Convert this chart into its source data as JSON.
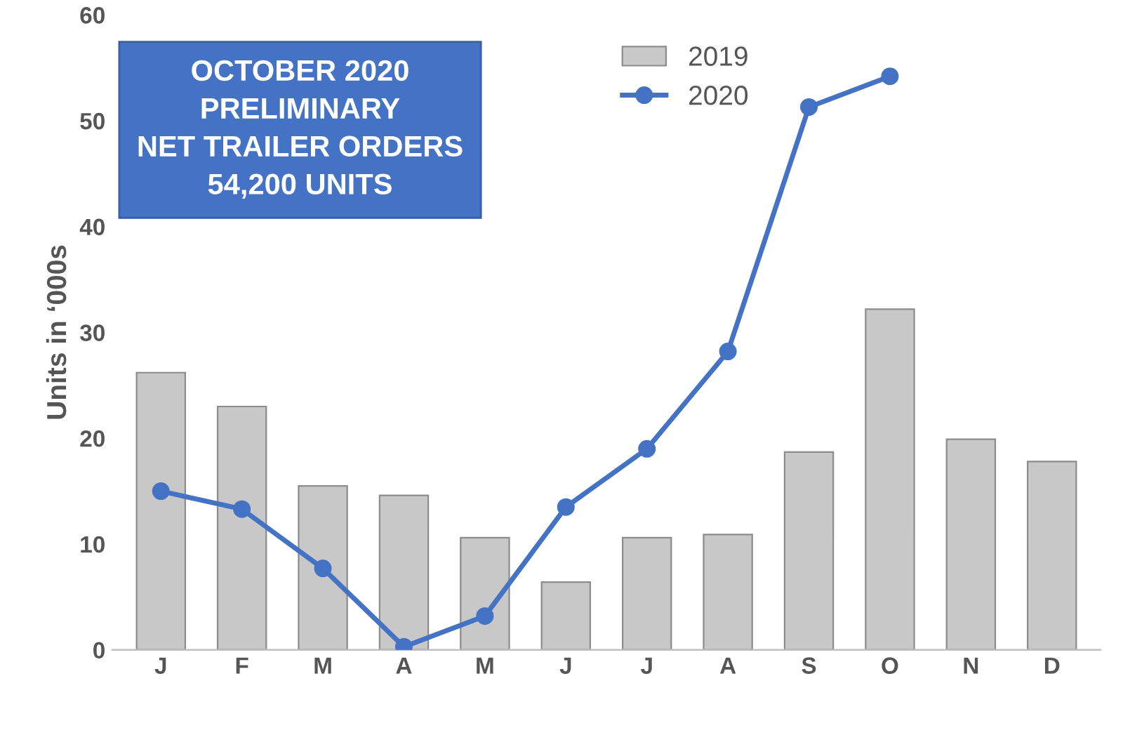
{
  "chart_data": {
    "type": "bar",
    "title": "OCTOBER 2020\nPRELIMINARY\nNET TRAILER ORDERS\n54,200 UNITS",
    "ylabel": "Units in ‘000s",
    "categories": [
      "J",
      "F",
      "M",
      "A",
      "M",
      "J",
      "J",
      "A",
      "S",
      "O",
      "N",
      "D"
    ],
    "series": [
      {
        "name": "2019",
        "color": "#c8c8c8",
        "values": [
          26.2,
          23.0,
          15.5,
          14.6,
          10.6,
          6.4,
          10.6,
          10.9,
          18.7,
          32.2,
          19.9,
          17.8
        ]
      },
      {
        "name": "2020",
        "type": "line",
        "color": "#4472c4",
        "values": [
          15.0,
          13.3,
          7.7,
          0.3,
          3.2,
          13.5,
          19.0,
          28.2,
          51.3,
          54.2,
          null,
          null
        ]
      }
    ],
    "ylim": [
      0,
      60
    ],
    "yticks": [
      0,
      10,
      20,
      30,
      40,
      50,
      60
    ],
    "grid": false,
    "legend": "top",
    "marker": "circle",
    "line_style": "solid"
  }
}
